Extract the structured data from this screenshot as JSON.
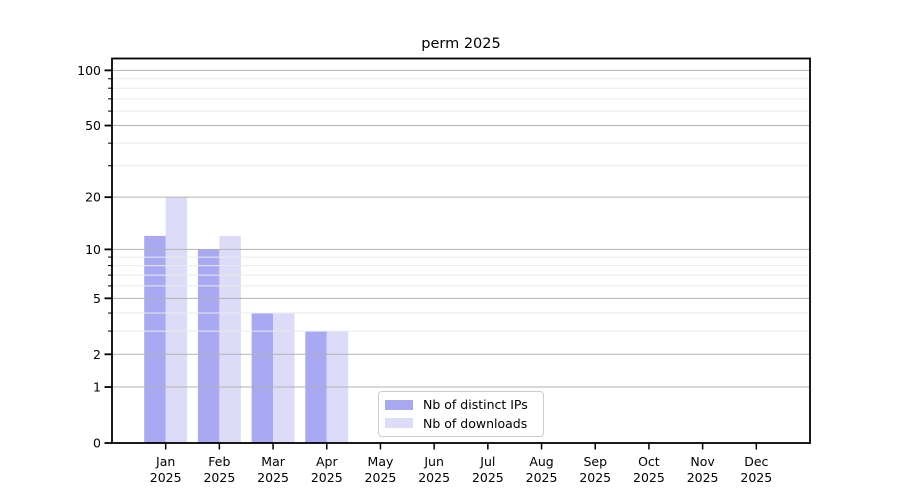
{
  "title": "perm 2025",
  "colors": {
    "ips_bar": "#a8a8f3",
    "downloads_bar": "#dcdcf8",
    "grid_major": "#b2b2b2",
    "grid_minor": "#eaeaea",
    "axis": "#000000",
    "legend_border": "#cccccc",
    "background": "#ffffff"
  },
  "legend": {
    "items": [
      {
        "label": "Nb of distinct IPs",
        "series_index": 0
      },
      {
        "label": "Nb of downloads",
        "series_index": 1
      }
    ]
  },
  "chart_data": {
    "type": "bar",
    "title": "perm 2025",
    "categories": [
      "Jan",
      "Feb",
      "Mar",
      "Apr",
      "May",
      "Jun",
      "Jul",
      "Aug",
      "Sep",
      "Oct",
      "Nov",
      "Dec"
    ],
    "category_year": "2025",
    "series": [
      {
        "name": "Nb of distinct IPs",
        "color": "#a8a8f3",
        "values": [
          12,
          10,
          4,
          3,
          0,
          0,
          0,
          0,
          0,
          0,
          0,
          0
        ]
      },
      {
        "name": "Nb of downloads",
        "color": "#dcdcf8",
        "values": [
          20,
          12,
          4,
          3,
          0,
          0,
          0,
          0,
          0,
          0,
          0,
          0
        ]
      }
    ],
    "xlabel": "",
    "ylabel": "",
    "y_scale": "log10(1+y)",
    "y_ticks": [
      0,
      1,
      2,
      5,
      10,
      20,
      50,
      100
    ],
    "y_minor_ticks": [
      3,
      4,
      6,
      7,
      8,
      9,
      30,
      40,
      60,
      70,
      80,
      90
    ],
    "ylim": [
      0,
      116
    ],
    "grid": true,
    "grid_above_bars": true,
    "legend_position": "lower center"
  }
}
